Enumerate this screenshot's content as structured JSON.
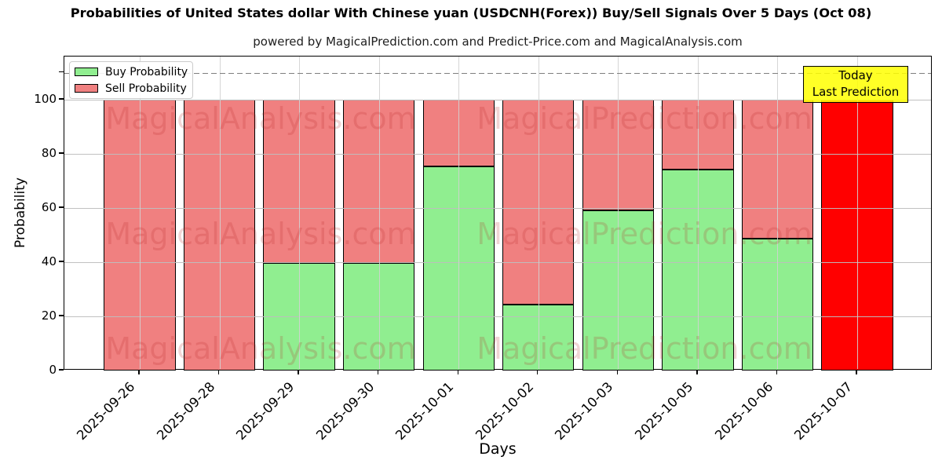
{
  "title": "Probabilities of United States dollar With Chinese yuan (USDCNH(Forex)) Buy/Sell Signals Over 5 Days (Oct 08)",
  "subtitle": "powered by MagicalPrediction.com and Predict-Price.com and MagicalAnalysis.com",
  "xlabel": "Days",
  "ylabel": "Probability",
  "legend": {
    "buy": "Buy Probability",
    "sell": "Sell Probability"
  },
  "annotation": {
    "line1": "Today",
    "line2": "Last Prediction"
  },
  "watermarks": {
    "left": "MagicalAnalysis.com",
    "right": "MagicalPrediction.com"
  },
  "colors": {
    "buy": "#90ee90",
    "sell": "#f08080",
    "today": "#ff0000",
    "grid": "#c8c8c8",
    "dashed": "#7f7f7f",
    "annotation_bg": "#ffff00",
    "watermark": "#b22222"
  },
  "chart_data": {
    "type": "bar",
    "stacked": true,
    "title": "Probabilities of United States dollar With Chinese yuan (USDCNH(Forex)) Buy/Sell Signals Over 5 Days (Oct 08)",
    "xlabel": "Days",
    "ylabel": "Probability",
    "categories": [
      "2025-09-26",
      "2025-09-28",
      "2025-09-29",
      "2025-09-30",
      "2025-10-01",
      "2025-10-02",
      "2025-10-03",
      "2025-10-05",
      "2025-10-06",
      "2025-10-07"
    ],
    "series": [
      {
        "name": "Buy Probability",
        "color": "#90ee90",
        "values": [
          0,
          0,
          39.6,
          39.6,
          75.5,
          24.3,
          59.3,
          74.2,
          48.7,
          0
        ]
      },
      {
        "name": "Sell Probability",
        "color": "#f08080",
        "values": [
          100,
          100,
          60.4,
          60.4,
          24.5,
          75.7,
          40.7,
          25.8,
          51.3,
          0
        ]
      }
    ],
    "today_bar": {
      "category": "2025-10-07",
      "value": 100,
      "color": "#ff0000",
      "label": "Today Last Prediction"
    },
    "yticks": [
      0,
      20,
      40,
      60,
      80,
      100
    ],
    "ylim": [
      0,
      116
    ],
    "dashed_line_y": 110,
    "grid": true,
    "legend_position": "upper left"
  }
}
